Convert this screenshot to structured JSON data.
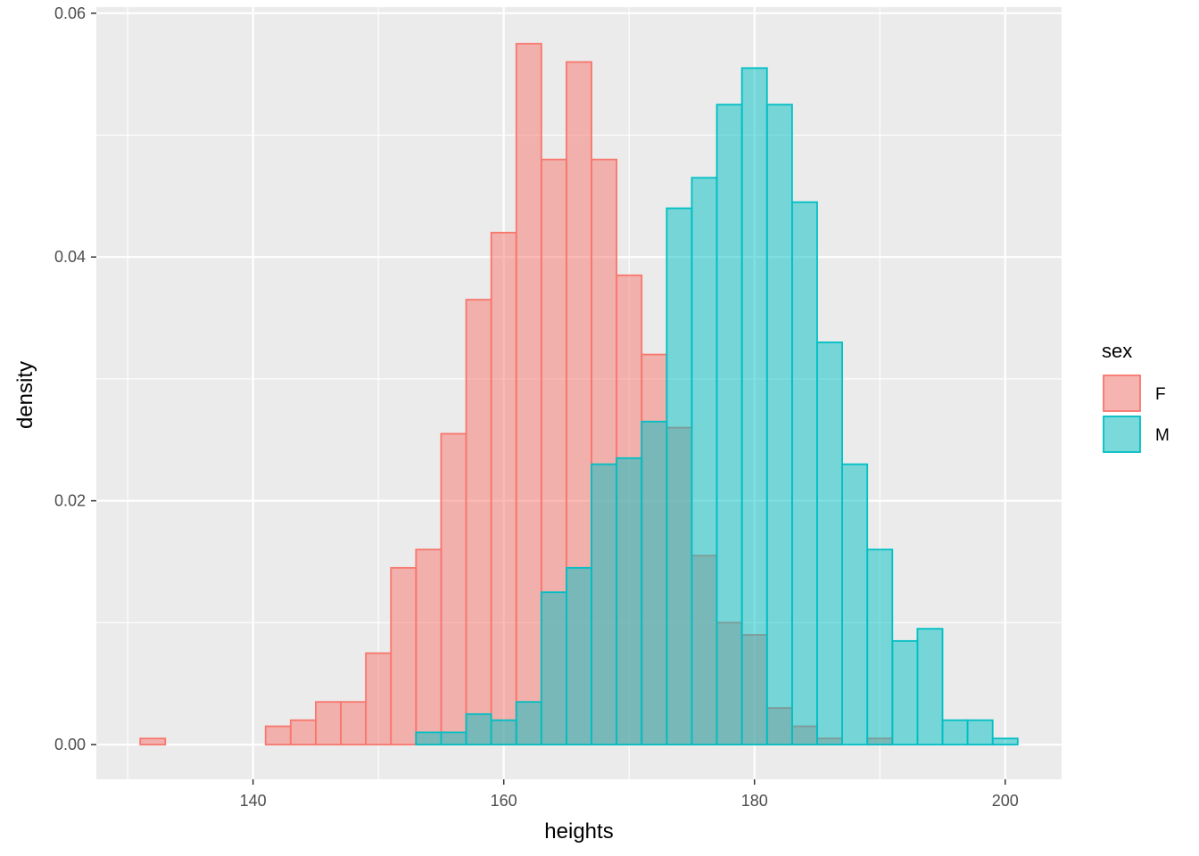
{
  "chart_data": {
    "type": "histogram",
    "xlabel": "heights",
    "ylabel": "density",
    "xlim": [
      127.5,
      204.5
    ],
    "ylim": [
      -0.00285,
      0.0605
    ],
    "x_ticks": [
      140,
      160,
      180,
      200
    ],
    "x_tick_labels": [
      "140",
      "160",
      "180",
      "200"
    ],
    "y_ticks": [
      0.0,
      0.02,
      0.04,
      0.06
    ],
    "y_tick_labels": [
      "0.00",
      "0.02",
      "0.04",
      "0.06"
    ],
    "bin_width": 2,
    "grid": true,
    "legend": {
      "title": "sex",
      "position": "right"
    },
    "series": [
      {
        "name": "F",
        "fill": "#F8766D",
        "stroke": "#F8766D",
        "bins": [
          {
            "x0": 131,
            "x1": 133,
            "density": 0.0005
          },
          {
            "x0": 133,
            "x1": 135,
            "density": 0.0
          },
          {
            "x0": 135,
            "x1": 137,
            "density": 0.0
          },
          {
            "x0": 137,
            "x1": 139,
            "density": 0.0
          },
          {
            "x0": 139,
            "x1": 141,
            "density": 0.0
          },
          {
            "x0": 141,
            "x1": 143,
            "density": 0.0015
          },
          {
            "x0": 143,
            "x1": 145,
            "density": 0.002
          },
          {
            "x0": 145,
            "x1": 147,
            "density": 0.0035
          },
          {
            "x0": 147,
            "x1": 149,
            "density": 0.0035
          },
          {
            "x0": 149,
            "x1": 151,
            "density": 0.0075
          },
          {
            "x0": 151,
            "x1": 153,
            "density": 0.0145
          },
          {
            "x0": 153,
            "x1": 155,
            "density": 0.016
          },
          {
            "x0": 155,
            "x1": 157,
            "density": 0.0255
          },
          {
            "x0": 157,
            "x1": 159,
            "density": 0.0365
          },
          {
            "x0": 159,
            "x1": 161,
            "density": 0.042
          },
          {
            "x0": 161,
            "x1": 163,
            "density": 0.0575
          },
          {
            "x0": 163,
            "x1": 165,
            "density": 0.048
          },
          {
            "x0": 165,
            "x1": 167,
            "density": 0.056
          },
          {
            "x0": 167,
            "x1": 169,
            "density": 0.048
          },
          {
            "x0": 169,
            "x1": 171,
            "density": 0.0385
          },
          {
            "x0": 171,
            "x1": 173,
            "density": 0.032
          },
          {
            "x0": 173,
            "x1": 175,
            "density": 0.026
          },
          {
            "x0": 175,
            "x1": 177,
            "density": 0.0155
          },
          {
            "x0": 177,
            "x1": 179,
            "density": 0.01
          },
          {
            "x0": 179,
            "x1": 181,
            "density": 0.009
          },
          {
            "x0": 181,
            "x1": 183,
            "density": 0.003
          },
          {
            "x0": 183,
            "x1": 185,
            "density": 0.0015
          },
          {
            "x0": 185,
            "x1": 187,
            "density": 0.0005
          },
          {
            "x0": 187,
            "x1": 189,
            "density": 0.0
          },
          {
            "x0": 189,
            "x1": 191,
            "density": 0.0005
          }
        ]
      },
      {
        "name": "M",
        "fill": "#00BFC4",
        "stroke": "#00BFC4",
        "bins": [
          {
            "x0": 131,
            "x1": 133,
            "density": 0.0
          },
          {
            "x0": 133,
            "x1": 135,
            "density": 0.0
          },
          {
            "x0": 135,
            "x1": 137,
            "density": 0.0
          },
          {
            "x0": 137,
            "x1": 139,
            "density": 0.0
          },
          {
            "x0": 139,
            "x1": 141,
            "density": 0.0
          },
          {
            "x0": 141,
            "x1": 143,
            "density": 0.0
          },
          {
            "x0": 143,
            "x1": 145,
            "density": 0.0
          },
          {
            "x0": 145,
            "x1": 147,
            "density": 0.0
          },
          {
            "x0": 147,
            "x1": 149,
            "density": 0.0
          },
          {
            "x0": 149,
            "x1": 151,
            "density": 0.0
          },
          {
            "x0": 151,
            "x1": 153,
            "density": 0.0
          },
          {
            "x0": 153,
            "x1": 155,
            "density": 0.001
          },
          {
            "x0": 155,
            "x1": 157,
            "density": 0.001
          },
          {
            "x0": 157,
            "x1": 159,
            "density": 0.0025
          },
          {
            "x0": 159,
            "x1": 161,
            "density": 0.002
          },
          {
            "x0": 161,
            "x1": 163,
            "density": 0.0035
          },
          {
            "x0": 163,
            "x1": 165,
            "density": 0.0125
          },
          {
            "x0": 165,
            "x1": 167,
            "density": 0.0145
          },
          {
            "x0": 167,
            "x1": 169,
            "density": 0.023
          },
          {
            "x0": 169,
            "x1": 171,
            "density": 0.0235
          },
          {
            "x0": 171,
            "x1": 173,
            "density": 0.0265
          },
          {
            "x0": 173,
            "x1": 175,
            "density": 0.044
          },
          {
            "x0": 175,
            "x1": 177,
            "density": 0.0465
          },
          {
            "x0": 177,
            "x1": 179,
            "density": 0.0525
          },
          {
            "x0": 179,
            "x1": 181,
            "density": 0.0555
          },
          {
            "x0": 181,
            "x1": 183,
            "density": 0.0525
          },
          {
            "x0": 183,
            "x1": 185,
            "density": 0.0445
          },
          {
            "x0": 185,
            "x1": 187,
            "density": 0.033
          },
          {
            "x0": 187,
            "x1": 189,
            "density": 0.023
          },
          {
            "x0": 189,
            "x1": 191,
            "density": 0.016
          },
          {
            "x0": 191,
            "x1": 193,
            "density": 0.0085
          },
          {
            "x0": 193,
            "x1": 195,
            "density": 0.0095
          },
          {
            "x0": 195,
            "x1": 197,
            "density": 0.002
          },
          {
            "x0": 197,
            "x1": 199,
            "density": 0.002
          },
          {
            "x0": 199,
            "x1": 201,
            "density": 0.0005
          }
        ]
      }
    ]
  }
}
